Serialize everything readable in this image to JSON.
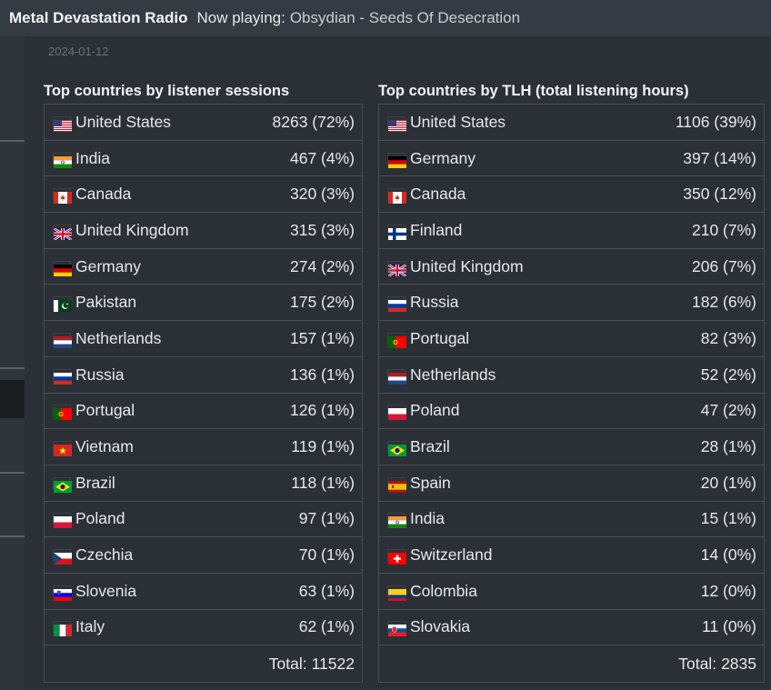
{
  "topbar": {
    "station": "Metal Devastation Radio",
    "now_playing_label": "Now playing:",
    "track": "Obsydian - Seeds Of Desecration"
  },
  "date": "2024-01-12",
  "sessions": {
    "title": "Top countries by listener sessions",
    "rows": [
      {
        "country": "United States",
        "value": "8263 (72%)",
        "flag": "us-flag-icon"
      },
      {
        "country": "India",
        "value": "467 (4%)",
        "flag": "in-flag-icon"
      },
      {
        "country": "Canada",
        "value": "320 (3%)",
        "flag": "ca-flag-icon"
      },
      {
        "country": "United Kingdom",
        "value": "315 (3%)",
        "flag": "gb-flag-icon"
      },
      {
        "country": "Germany",
        "value": "274 (2%)",
        "flag": "de-flag-icon"
      },
      {
        "country": "Pakistan",
        "value": "175 (2%)",
        "flag": "pk-flag-icon"
      },
      {
        "country": "Netherlands",
        "value": "157 (1%)",
        "flag": "nl-flag-icon"
      },
      {
        "country": "Russia",
        "value": "136 (1%)",
        "flag": "ru-flag-icon"
      },
      {
        "country": "Portugal",
        "value": "126 (1%)",
        "flag": "pt-flag-icon"
      },
      {
        "country": "Vietnam",
        "value": "119 (1%)",
        "flag": "vn-flag-icon"
      },
      {
        "country": "Brazil",
        "value": "118 (1%)",
        "flag": "br-flag-icon"
      },
      {
        "country": "Poland",
        "value": "97 (1%)",
        "flag": "pl-flag-icon"
      },
      {
        "country": "Czechia",
        "value": "70 (1%)",
        "flag": "cz-flag-icon"
      },
      {
        "country": "Slovenia",
        "value": "63 (1%)",
        "flag": "si-flag-icon"
      },
      {
        "country": "Italy",
        "value": "62 (1%)",
        "flag": "it-flag-icon"
      }
    ],
    "total_label": "Total:",
    "total_value": "11522"
  },
  "tlh": {
    "title": "Top countries by TLH (total listening hours)",
    "rows": [
      {
        "country": "United States",
        "value": "1106 (39%)",
        "flag": "us-flag-icon"
      },
      {
        "country": "Germany",
        "value": "397 (14%)",
        "flag": "de-flag-icon"
      },
      {
        "country": "Canada",
        "value": "350 (12%)",
        "flag": "ca-flag-icon"
      },
      {
        "country": "Finland",
        "value": "210 (7%)",
        "flag": "fi-flag-icon"
      },
      {
        "country": "United Kingdom",
        "value": "206 (7%)",
        "flag": "gb-flag-icon"
      },
      {
        "country": "Russia",
        "value": "182 (6%)",
        "flag": "ru-flag-icon"
      },
      {
        "country": "Portugal",
        "value": "82 (3%)",
        "flag": "pt-flag-icon"
      },
      {
        "country": "Netherlands",
        "value": "52 (2%)",
        "flag": "nl-flag-icon"
      },
      {
        "country": "Poland",
        "value": "47 (2%)",
        "flag": "pl-flag-icon"
      },
      {
        "country": "Brazil",
        "value": "28 (1%)",
        "flag": "br-flag-icon"
      },
      {
        "country": "Spain",
        "value": "20 (1%)",
        "flag": "es-flag-icon"
      },
      {
        "country": "India",
        "value": "15 (1%)",
        "flag": "in-flag-icon"
      },
      {
        "country": "Switzerland",
        "value": "14 (0%)",
        "flag": "ch-flag-icon"
      },
      {
        "country": "Colombia",
        "value": "12 (0%)",
        "flag": "co-flag-icon"
      },
      {
        "country": "Slovakia",
        "value": "11 (0%)",
        "flag": "sk-flag-icon"
      }
    ],
    "total_label": "Total:",
    "total_value": "2835"
  }
}
